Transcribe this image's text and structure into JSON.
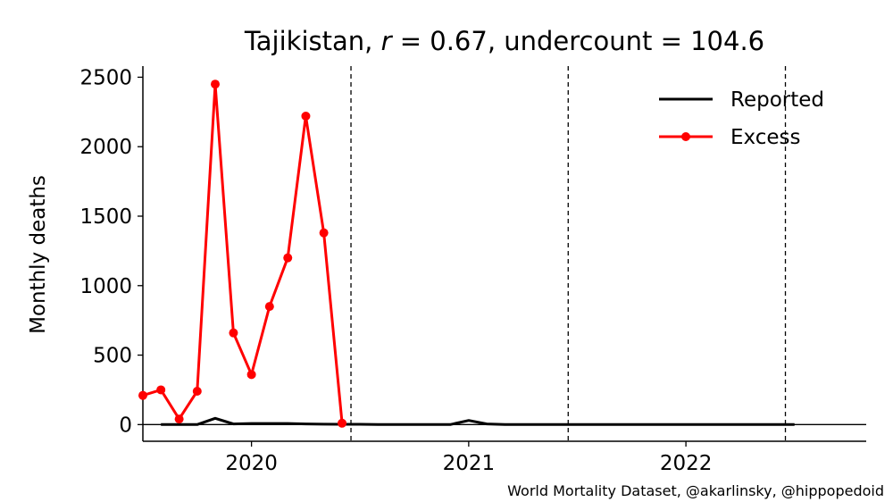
{
  "chart_data": {
    "type": "line",
    "title_parts": {
      "country": "Tajikistan, ",
      "r_symbol": "r",
      "r_eq": " = 0.67, undercount = 104.6"
    },
    "ylabel": "Monthly deaths",
    "xlabel": "",
    "ylim": [
      -120,
      2580
    ],
    "xlim": [
      2019.5,
      2022.83
    ],
    "y_ticks": [
      0,
      500,
      1000,
      1500,
      2000,
      2500
    ],
    "x_ticks": [
      {
        "value": 2020.0,
        "label": "2020"
      },
      {
        "value": 2021.0,
        "label": "2021"
      },
      {
        "value": 2022.0,
        "label": "2022"
      }
    ],
    "vlines": [
      2020.458,
      2021.458,
      2022.458
    ],
    "grid": false,
    "legend_position": "top-right",
    "series": [
      {
        "name": "Reported",
        "color": "#000000",
        "marker": false,
        "points": [
          [
            2019.583,
            0
          ],
          [
            2019.667,
            0
          ],
          [
            2019.75,
            0
          ],
          [
            2019.833,
            45
          ],
          [
            2019.917,
            5
          ],
          [
            2020.0,
            8
          ],
          [
            2020.083,
            8
          ],
          [
            2020.167,
            8
          ],
          [
            2020.25,
            5
          ],
          [
            2020.333,
            3
          ],
          [
            2020.417,
            2
          ],
          [
            2020.5,
            2
          ],
          [
            2020.583,
            1
          ],
          [
            2020.667,
            1
          ],
          [
            2020.75,
            1
          ],
          [
            2020.833,
            1
          ],
          [
            2020.917,
            1
          ],
          [
            2021.0,
            30
          ],
          [
            2021.083,
            5
          ],
          [
            2021.167,
            1
          ],
          [
            2021.25,
            1
          ],
          [
            2021.333,
            1
          ],
          [
            2021.417,
            1
          ],
          [
            2021.5,
            1
          ],
          [
            2021.583,
            1
          ],
          [
            2021.667,
            1
          ],
          [
            2021.75,
            1
          ],
          [
            2021.833,
            1
          ],
          [
            2021.917,
            1
          ],
          [
            2022.0,
            1
          ],
          [
            2022.083,
            1
          ],
          [
            2022.167,
            1
          ],
          [
            2022.25,
            1
          ],
          [
            2022.333,
            1
          ],
          [
            2022.417,
            1
          ],
          [
            2022.5,
            1
          ]
        ]
      },
      {
        "name": "Excess",
        "color": "#ff0000",
        "marker": true,
        "points": [
          [
            2019.5,
            210
          ],
          [
            2019.583,
            250
          ],
          [
            2019.667,
            40
          ],
          [
            2019.75,
            240
          ],
          [
            2019.833,
            2450
          ],
          [
            2019.917,
            660
          ],
          [
            2020.0,
            360
          ],
          [
            2020.083,
            850
          ],
          [
            2020.167,
            1200
          ],
          [
            2020.25,
            2220
          ],
          [
            2020.333,
            1380
          ],
          [
            2020.417,
            10
          ]
        ]
      }
    ]
  },
  "credit": "World Mortality Dataset, @akarlinsky, @hippopedoid"
}
